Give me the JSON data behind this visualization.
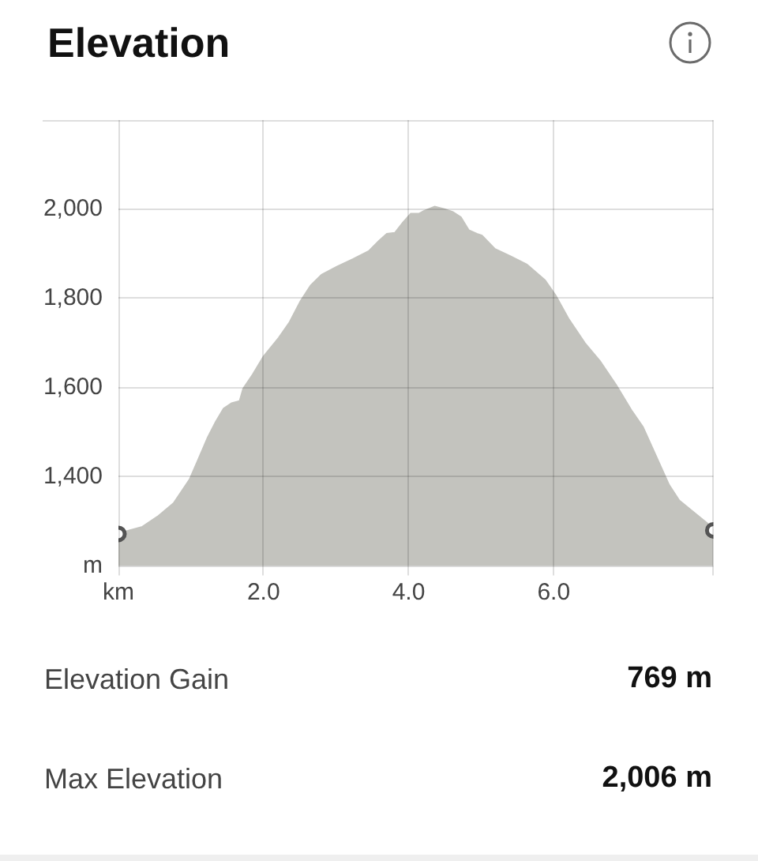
{
  "chart_data": {
    "type": "area",
    "title": "Elevation",
    "xlim": [
      0,
      8.2
    ],
    "xticks": [
      {
        "value": 0,
        "label": "km"
      },
      {
        "value": 2,
        "label": "2.0"
      },
      {
        "value": 4,
        "label": "4.0"
      },
      {
        "value": 6,
        "label": "6.0"
      },
      {
        "value": 8.2,
        "label": null
      }
    ],
    "ylim": [
      1200,
      2200
    ],
    "yticks": [
      {
        "value": 1200,
        "label": "m"
      },
      {
        "value": 1400,
        "label": "1,400"
      },
      {
        "value": 1600,
        "label": "1,600"
      },
      {
        "value": 1800,
        "label": "1,800"
      },
      {
        "value": 2000,
        "label": "2,000"
      },
      {
        "value": 2200,
        "label": null
      }
    ],
    "grid": true,
    "series": [
      {
        "color": "#c3c3be",
        "x": [
          0,
          0.15,
          0.33,
          0.54,
          0.76,
          0.98,
          1.09,
          1.23,
          1.34,
          1.45,
          1.56,
          1.67,
          1.72,
          1.85,
          2.0,
          2.21,
          2.36,
          2.51,
          2.65,
          2.8,
          3.01,
          3.23,
          3.45,
          3.59,
          3.7,
          3.81,
          3.92,
          4.03,
          4.14,
          4.21,
          4.36,
          4.5,
          4.61,
          4.72,
          4.83,
          4.94,
          5.01,
          5.19,
          5.41,
          5.63,
          5.88,
          6.03,
          6.21,
          6.43,
          6.64,
          6.86,
          7.08,
          7.23,
          7.41,
          7.59,
          7.73,
          7.95,
          8.13,
          8.2
        ],
        "values": [
          1272,
          1280,
          1288,
          1311,
          1341,
          1394,
          1435,
          1488,
          1523,
          1553,
          1565,
          1570,
          1598,
          1629,
          1670,
          1712,
          1747,
          1794,
          1829,
          1853,
          1871,
          1888,
          1906,
          1929,
          1945,
          1947,
          1970,
          1990,
          1990,
          1996,
          2006,
          2000,
          1994,
          1982,
          1953,
          1945,
          1941,
          1911,
          1894,
          1876,
          1841,
          1806,
          1753,
          1700,
          1659,
          1606,
          1547,
          1512,
          1447,
          1382,
          1347,
          1318,
          1294,
          1280
        ]
      },
      {
        "type": "scatter",
        "color": "#555555",
        "marker": "circle",
        "x": [
          0,
          8.2
        ],
        "values": [
          1272,
          1280
        ]
      }
    ],
    "annotations": [
      "Elevation Gain",
      "769 m",
      "Max Elevation",
      "2,006 m"
    ]
  }
}
